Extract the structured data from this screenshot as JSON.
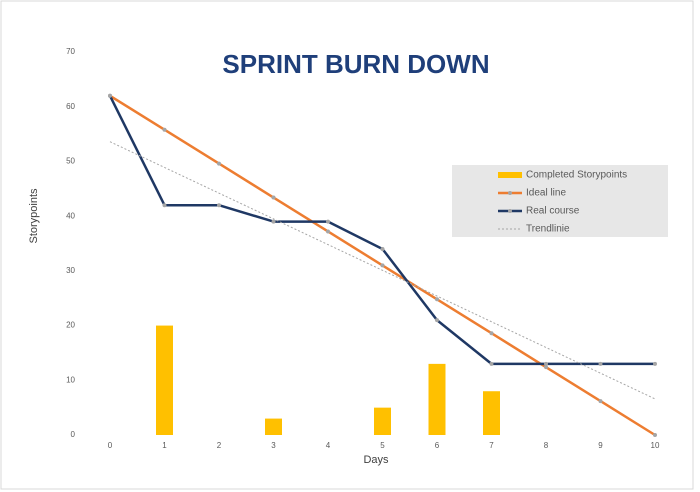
{
  "chart_data": {
    "type": "combo",
    "title": "SPRINT BURN DOWN",
    "x_label": "Days",
    "y_label": "Storypoints",
    "x": [
      0,
      1,
      2,
      3,
      4,
      5,
      6,
      7,
      8,
      9,
      10
    ],
    "xlim": [
      0,
      10
    ],
    "xticks": [
      0,
      1,
      2,
      3,
      4,
      5,
      6,
      7,
      8,
      9,
      10
    ],
    "ylim": [
      0,
      70
    ],
    "yticks": [
      0,
      10,
      20,
      30,
      40,
      50,
      60,
      70
    ],
    "legend": "right",
    "grid": false,
    "series": [
      {
        "name": "Completed Storypoints",
        "kind": "bar",
        "color": "#ffc000",
        "values": [
          0,
          20,
          0,
          3,
          0,
          5,
          13,
          8,
          0,
          0,
          0
        ]
      },
      {
        "name": "Ideal line",
        "kind": "line",
        "color": "#ed7d31",
        "values": [
          62,
          55.8,
          49.6,
          43.4,
          37.2,
          31,
          24.8,
          18.6,
          12.4,
          6.2,
          0
        ]
      },
      {
        "name": "Real course",
        "kind": "line",
        "color": "#1f3864",
        "values": [
          62,
          42,
          42,
          39,
          39,
          34,
          21,
          13,
          13,
          13,
          13
        ]
      },
      {
        "name": "Trendlinie",
        "kind": "dotted",
        "color": "#a6a6a6",
        "values": [
          53.6,
          48.9,
          44.2,
          39.5,
          34.8,
          30.1,
          25.4,
          20.7,
          16.0,
          11.3,
          6.6
        ]
      }
    ]
  }
}
